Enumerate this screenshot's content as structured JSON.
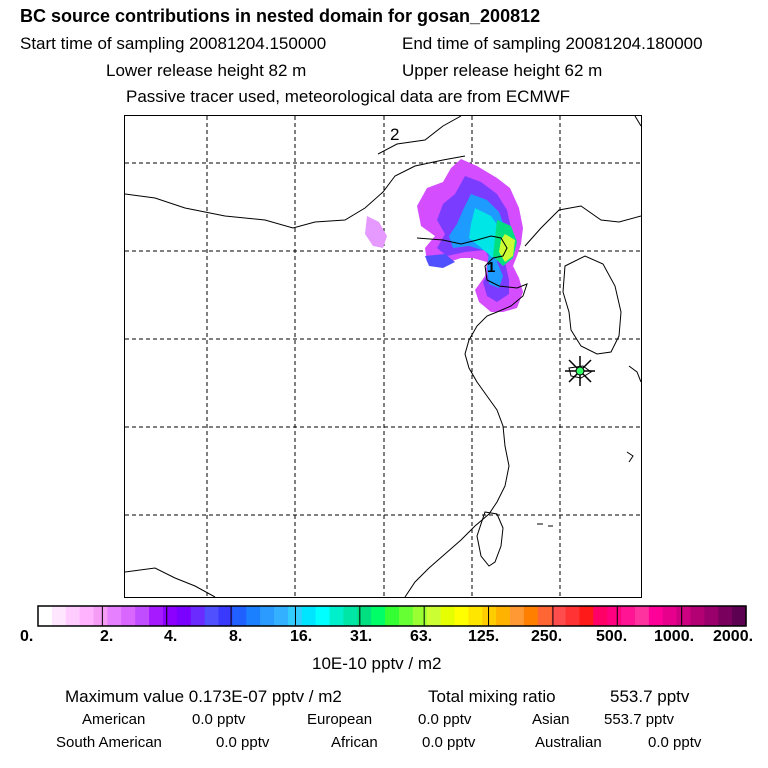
{
  "header": {
    "title": "BC  source contributions in nested domain for gosan_200812",
    "start_label": "Start time of sampling 20081204.150000",
    "end_label": "End time of sampling 20081204.180000",
    "lower_label": "Lower release height   82 m",
    "upper_label": "Upper release height   62 m",
    "note": "Passive tracer used, meteorological data are from ECMWF"
  },
  "map": {
    "labels": {
      "top": "2",
      "center": "1"
    },
    "marker": "release-site-star"
  },
  "colorbar": {
    "colors": [
      "#ffffff",
      "#ffe6ff",
      "#ffccff",
      "#ffb3ff",
      "#f59cf5",
      "#e680ff",
      "#d966ff",
      "#c04dff",
      "#a61aff",
      "#8c00ff",
      "#7a00ff",
      "#6b2bff",
      "#5050ff",
      "#3a3aff",
      "#2060ff",
      "#1a80ff",
      "#2b9bff",
      "#33b0ff",
      "#33ccff",
      "#00e5ff",
      "#00ffff",
      "#00f0cc",
      "#00e6a6",
      "#00e080",
      "#00ff66",
      "#33ff33",
      "#66ff33",
      "#99ff33",
      "#ccff33",
      "#e6ff00",
      "#ffff00",
      "#ffe600",
      "#ffcc00",
      "#ffb300",
      "#ff9933",
      "#ff8000",
      "#ff6633",
      "#ff4d4d",
      "#ff3333",
      "#ff1a1a",
      "#ff0066",
      "#ff0080",
      "#ff1493",
      "#ff33a0",
      "#ff0099",
      "#e6008c",
      "#cc0080",
      "#b30073",
      "#99006b",
      "#7a005e",
      "#5c0052"
    ],
    "ticks": [
      "0.",
      "2.",
      "4.",
      "8.",
      "16.",
      "31.",
      "63.",
      "125.",
      "250.",
      "500.",
      "1000.",
      "2000."
    ],
    "units": "10E-10 pptv / m2"
  },
  "footer": {
    "max_label": "Maximum value  0.173E-07 pptv / m2",
    "total_label": "Total mixing ratio",
    "total_value": "553.7 pptv",
    "american_label": "American",
    "american_value": "0.0 pptv",
    "european_label": "European",
    "european_value": "0.0 pptv",
    "asian_label": "Asian",
    "asian_value": "553.7 pptv",
    "south_american_label": "South American",
    "south_american_value": "0.0 pptv",
    "african_label": "African",
    "african_value": "0.0 pptv",
    "australian_label": "Australian",
    "australian_value": "0.0 pptv"
  }
}
